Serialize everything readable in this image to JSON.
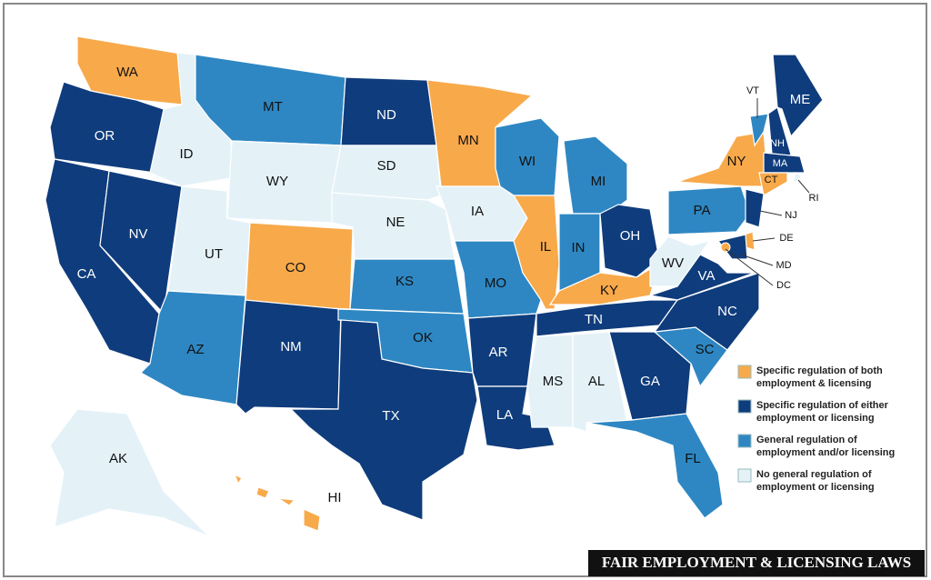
{
  "title": "FAIR EMPLOYMENT & LICENSING LAWS",
  "legend": [
    {
      "lines": [
        "Specific regulation of both",
        "employment & licensing"
      ],
      "color": "#f8a94a"
    },
    {
      "lines": [
        "Specific regulation of either",
        "employment or licensing"
      ],
      "color": "#0f3c7c"
    },
    {
      "lines": [
        "General regulation of",
        "employment and/or licensing"
      ],
      "color": "#2e87c3"
    },
    {
      "lines": [
        "No general regulation of",
        "employment or licensing"
      ],
      "color": "#e4f2f8"
    }
  ],
  "states": [
    {
      "label": "WA",
      "color": "#f8a94a"
    },
    {
      "label": "OR",
      "color": "#0f3c7c"
    },
    {
      "label": "CA",
      "color": "#0f3c7c"
    },
    {
      "label": "NV",
      "color": "#0f3c7c"
    },
    {
      "label": "ID",
      "color": "#e4f2f8"
    },
    {
      "label": "MT",
      "color": "#2e87c3"
    },
    {
      "label": "WY",
      "color": "#e4f2f8"
    },
    {
      "label": "UT",
      "color": "#e4f2f8"
    },
    {
      "label": "CO",
      "color": "#f8a94a"
    },
    {
      "label": "AZ",
      "color": "#2e87c3"
    },
    {
      "label": "NM",
      "color": "#0f3c7c"
    },
    {
      "label": "ND",
      "color": "#0f3c7c"
    },
    {
      "label": "SD",
      "color": "#e4f2f8"
    },
    {
      "label": "NE",
      "color": "#e4f2f8"
    },
    {
      "label": "KS",
      "color": "#2e87c3"
    },
    {
      "label": "OK",
      "color": "#2e87c3"
    },
    {
      "label": "TX",
      "color": "#0f3c7c"
    },
    {
      "label": "MN",
      "color": "#f8a94a"
    },
    {
      "label": "IA",
      "color": "#e4f2f8"
    },
    {
      "label": "MO",
      "color": "#2e87c3"
    },
    {
      "label": "AR",
      "color": "#0f3c7c"
    },
    {
      "label": "LA",
      "color": "#0f3c7c"
    },
    {
      "label": "WI",
      "color": "#2e87c3"
    },
    {
      "label": "IL",
      "color": "#f8a94a"
    },
    {
      "label": "MI",
      "color": "#2e87c3"
    },
    {
      "label": "IN",
      "color": "#2e87c3"
    },
    {
      "label": "OH",
      "color": "#0f3c7c"
    },
    {
      "label": "KY",
      "color": "#f8a94a"
    },
    {
      "label": "TN",
      "color": "#0f3c7c"
    },
    {
      "label": "MS",
      "color": "#e4f2f8"
    },
    {
      "label": "AL",
      "color": "#e4f2f8"
    },
    {
      "label": "GA",
      "color": "#0f3c7c"
    },
    {
      "label": "FL",
      "color": "#2e87c3"
    },
    {
      "label": "SC",
      "color": "#2e87c3"
    },
    {
      "label": "NC",
      "color": "#0f3c7c"
    },
    {
      "label": "VA",
      "color": "#0f3c7c"
    },
    {
      "label": "WV",
      "color": "#e4f2f8"
    },
    {
      "label": "PA",
      "color": "#2e87c3"
    },
    {
      "label": "NY",
      "color": "#f8a94a"
    },
    {
      "label": "VT",
      "color": "#2e87c3"
    },
    {
      "label": "NH",
      "color": "#0f3c7c"
    },
    {
      "label": "ME",
      "color": "#0f3c7c"
    },
    {
      "label": "MA",
      "color": "#0f3c7c"
    },
    {
      "label": "RI",
      "color": "#e4f2f8"
    },
    {
      "label": "CT",
      "color": "#f8a94a"
    },
    {
      "label": "NJ",
      "color": "#0f3c7c"
    },
    {
      "label": "DE",
      "color": "#f8a94a"
    },
    {
      "label": "MD",
      "color": "#0f3c7c"
    },
    {
      "label": "DC",
      "color": "#f8a94a"
    },
    {
      "label": "AK",
      "color": "#e4f2f8"
    },
    {
      "label": "HI",
      "color": "#f8a94a"
    }
  ]
}
